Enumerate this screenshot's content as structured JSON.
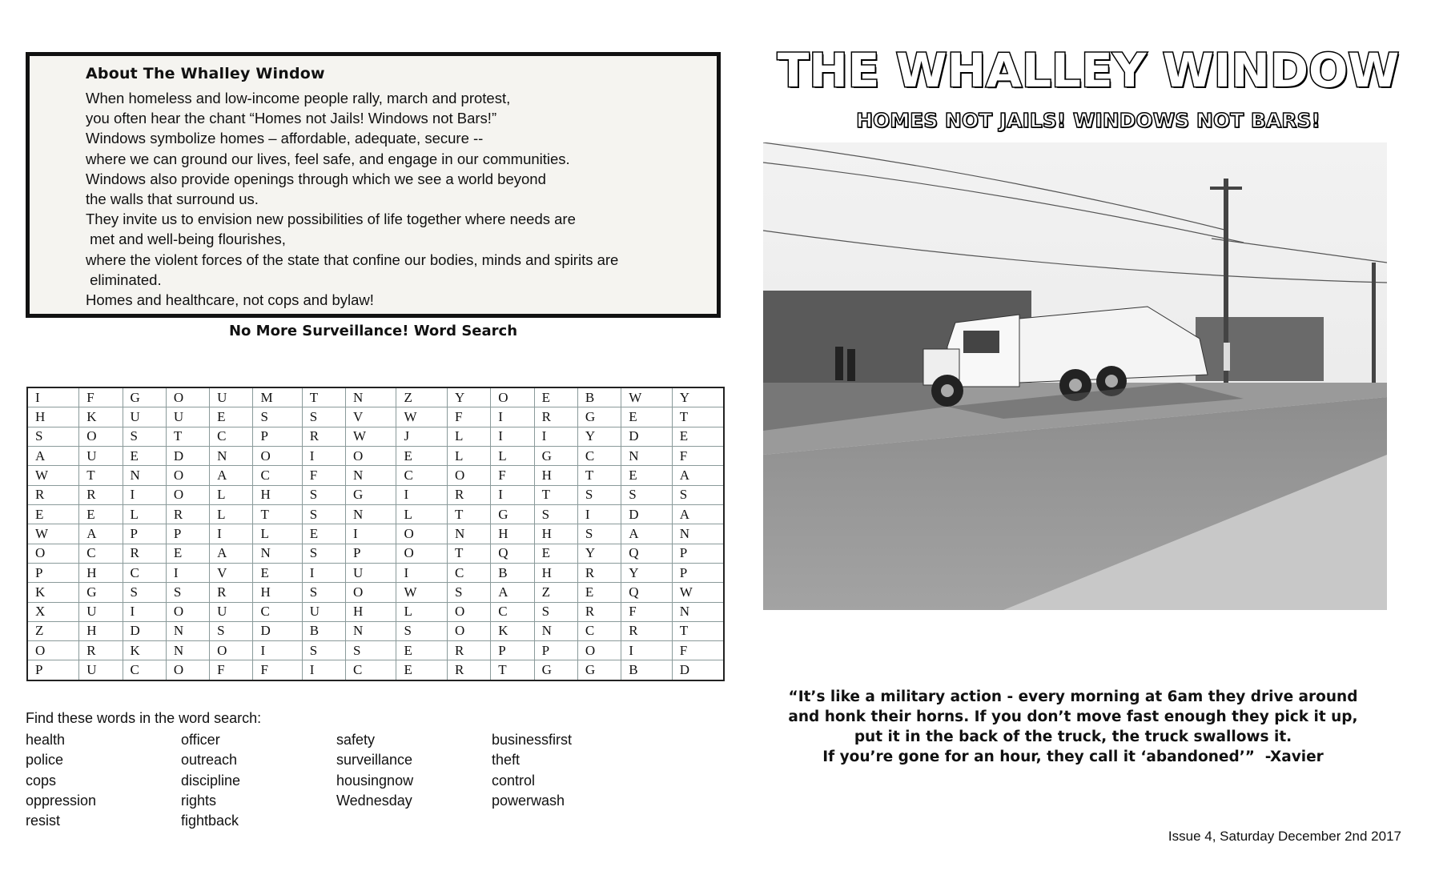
{
  "about": {
    "heading": "About The Whalley Window",
    "lines": [
      "When homeless and low-income people rally, march and protest,",
      "you often hear the chant “Homes not Jails! Windows not Bars!”",
      "Windows symbolize homes – affordable, adequate, secure --",
      "where we can ground our lives, feel safe, and engage in our communities.",
      "Windows also provide openings through which we see a world beyond",
      "the walls that surround us.",
      "They invite us to envision new possibilities of life together where needs are",
      " met and well-being flourishes,",
      "where the violent forces of the state that confine our bodies, minds and spirits are",
      " eliminated.",
      "Homes and healthcare, not cops and bylaw!"
    ]
  },
  "wordsearch": {
    "title": "No More Surveillance! Word Search",
    "rows": [
      "IFGOUMTNZYOEBWY",
      "HKUUESSVWFIRGET",
      "SOSTCPRWJLIIYDE",
      "AUEDNOIOELLGCNF",
      "WTNOACFNCOFHTEA",
      "RRIOLHSGIRITSSS",
      "EELRLTSNLTGSIDA",
      "WAPPILEIONHHSAN",
      "OCREANSPOTQEYQP",
      "PHCIVEIUICBHRYP",
      "KGSSRHSOWSAZEQW",
      "XUIOUCUHLOCSRFN",
      "ZHDNSDBNSOKNCRT",
      "ORKNOISSERPPOIF",
      "PUCOFFICERTGGBD"
    ],
    "find_label": "Find these words in the word search:",
    "word_columns": [
      [
        "health",
        "police",
        "cops",
        "oppression",
        "resist"
      ],
      [
        "officer",
        "outreach",
        "discipline",
        "rights",
        "fightback"
      ],
      [
        "safety",
        "surveillance",
        "housingnow",
        "Wednesday"
      ],
      [
        "businessfirst",
        "theft",
        "control",
        "powerwash"
      ]
    ]
  },
  "masthead": {
    "title": "THE WHALLEY WINDOW",
    "subtitle": "HOMES NOT JAILS! WINDOWS NOT BARS!"
  },
  "photo": {
    "subject": "garbage-truck-street-photo"
  },
  "quote": {
    "lines": [
      "“It’s like a military action - every morning at 6am they drive around",
      "and honk their horns. If you don’t move fast enough they pick it up,",
      "put it in the back of the truck, the truck swallows it.",
      "If you’re gone for an hour, they call it ‘abandoned’”  -Xavier"
    ]
  },
  "issue": "Issue 4, Saturday December 2nd 2017"
}
